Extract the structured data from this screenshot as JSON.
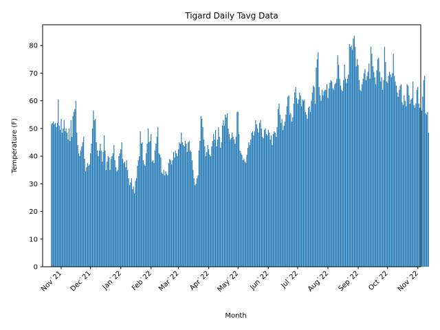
{
  "chart_data": {
    "type": "bar",
    "title": "Tigard Daily Tavg Data",
    "xlabel": "Month",
    "ylabel": "Temperature (F)",
    "ylim": [
      0,
      87.5
    ],
    "xlim": [
      "2021-10-13",
      "2022-11-04"
    ],
    "grid": false,
    "legend": "none",
    "bar_color": "#1f77b4",
    "start_date": "2021-10-22",
    "y_ticks": [
      0,
      10,
      20,
      30,
      40,
      50,
      60,
      70,
      80
    ],
    "x_ticks": [
      {
        "date": "2021-11-01",
        "label": "Nov`21"
      },
      {
        "date": "2021-12-01",
        "label": "Dec`21"
      },
      {
        "date": "2022-01-01",
        "label": "Jan`22"
      },
      {
        "date": "2022-02-01",
        "label": "Feb`22"
      },
      {
        "date": "2022-03-01",
        "label": "Mar`22"
      },
      {
        "date": "2022-04-01",
        "label": "Apr`22"
      },
      {
        "date": "2022-05-01",
        "label": "May`22"
      },
      {
        "date": "2022-06-01",
        "label": "Jun`22"
      },
      {
        "date": "2022-07-01",
        "label": "Jul`22"
      },
      {
        "date": "2022-08-01",
        "label": "Aug`22"
      },
      {
        "date": "2022-09-01",
        "label": "Sep`22"
      },
      {
        "date": "2022-10-01",
        "label": "Oct`22"
      },
      {
        "date": "2022-11-01",
        "label": "Nov`22"
      }
    ],
    "values": [
      51.5,
      52.0,
      52.5,
      51.5,
      52.0,
      50.5,
      52.0,
      60.5,
      51.0,
      49.5,
      53.5,
      48.5,
      50.0,
      53.0,
      49.0,
      50.0,
      48.5,
      46.0,
      50.0,
      45.5,
      53.0,
      47.0,
      54.5,
      56.0,
      57.0,
      60.0,
      48.5,
      44.0,
      41.0,
      40.0,
      42.0,
      43.5,
      45.0,
      47.0,
      39.0,
      34.5,
      36.0,
      37.5,
      36.5,
      37.0,
      41.0,
      44.5,
      50.0,
      56.5,
      53.0,
      53.5,
      45.0,
      42.0,
      40.0,
      42.0,
      44.5,
      42.0,
      38.0,
      41.5,
      47.5,
      42.0,
      35.0,
      38.0,
      40.0,
      39.5,
      35.0,
      39.0,
      40.0,
      41.0,
      44.0,
      38.5,
      36.0,
      34.5,
      35.0,
      40.0,
      41.0,
      42.5,
      45.0,
      39.0,
      37.5,
      38.0,
      36.0,
      38.5,
      35.0,
      32.0,
      29.5,
      30.5,
      32.0,
      28.0,
      29.0,
      26.5,
      31.0,
      32.0,
      36.5,
      38.5,
      40.0,
      49.0,
      44.5,
      45.0,
      38.5,
      37.0,
      36.5,
      41.0,
      44.5,
      50.0,
      45.0,
      45.5,
      48.0,
      38.0,
      38.5,
      37.5,
      42.0,
      44.5,
      47.0,
      50.5,
      41.0,
      40.5,
      39.5,
      34.0,
      33.5,
      35.0,
      33.0,
      34.5,
      33.5,
      33.0,
      37.5,
      39.0,
      38.5,
      37.0,
      38.5,
      41.5,
      39.5,
      42.0,
      41.0,
      40.0,
      42.5,
      45.0,
      44.5,
      48.5,
      45.0,
      44.0,
      43.5,
      45.5,
      44.5,
      41.5,
      45.0,
      45.5,
      42.0,
      41.5,
      38.5,
      35.0,
      32.0,
      29.5,
      30.0,
      32.0,
      33.0,
      42.0,
      45.5,
      54.5,
      53.5,
      50.5,
      46.0,
      43.5,
      40.0,
      41.5,
      44.0,
      42.5,
      40.5,
      40.0,
      43.5,
      45.5,
      48.0,
      46.0,
      49.5,
      43.5,
      46.0,
      50.5,
      47.0,
      43.0,
      45.0,
      51.0,
      53.0,
      51.0,
      55.0,
      54.0,
      55.5,
      50.0,
      48.0,
      46.0,
      46.5,
      48.5,
      47.0,
      46.0,
      44.5,
      47.0,
      56.0,
      56.0,
      48.0,
      42.0,
      41.0,
      40.5,
      38.5,
      39.0,
      38.0,
      37.5,
      40.5,
      43.0,
      45.0,
      44.0,
      46.0,
      48.5,
      49.0,
      47.5,
      49.0,
      53.0,
      51.5,
      50.0,
      48.5,
      52.0,
      53.0,
      50.0,
      47.0,
      46.5,
      49.5,
      50.0,
      48.0,
      47.5,
      49.5,
      48.5,
      46.0,
      47.5,
      44.0,
      48.0,
      49.0,
      48.5,
      47.0,
      50.5,
      57.0,
      59.0,
      55.0,
      52.0,
      53.5,
      49.5,
      51.0,
      52.5,
      55.0,
      58.0,
      61.5,
      62.0,
      55.0,
      55.5,
      52.5,
      54.0,
      59.0,
      63.0,
      65.0,
      61.0,
      59.0,
      60.5,
      63.0,
      62.0,
      58.0,
      60.5,
      60.0,
      60.5,
      56.0,
      55.0,
      53.5,
      57.5,
      58.0,
      56.0,
      60.0,
      63.0,
      65.5,
      65.0,
      59.0,
      72.0,
      75.0,
      77.5,
      65.0,
      62.0,
      60.0,
      64.0,
      62.0,
      63.5,
      64.0,
      64.0,
      66.0,
      61.0,
      64.5,
      66.5,
      67.5,
      67.0,
      64.5,
      64.0,
      66.0,
      66.5,
      68.0,
      76.5,
      73.0,
      68.0,
      65.5,
      64.0,
      63.5,
      67.5,
      73.0,
      68.0,
      66.5,
      68.0,
      69.5,
      80.5,
      79.5,
      80.0,
      78.5,
      82.5,
      83.5,
      79.5,
      72.5,
      75.0,
      73.0,
      67.5,
      64.0,
      63.5,
      66.0,
      68.0,
      70.0,
      71.5,
      67.5,
      69.0,
      70.5,
      73.5,
      68.0,
      79.5,
      77.0,
      72.5,
      70.5,
      68.5,
      66.0,
      71.0,
      75.0,
      75.5,
      70.5,
      67.0,
      68.5,
      64.0,
      67.5,
      79.5,
      74.0,
      67.0,
      66.5,
      69.0,
      70.5,
      69.5,
      68.5,
      70.0,
      77.0,
      69.0,
      67.0,
      65.5,
      63.0,
      61.5,
      64.0,
      65.5,
      66.0,
      59.5,
      58.5,
      62.0,
      60.0,
      58.0,
      66.0,
      65.5,
      62.0,
      59.0,
      60.5,
      61.0,
      67.0,
      58.5,
      57.5,
      59.0,
      64.0,
      65.0,
      59.0,
      57.5,
      58.0,
      56.5,
      61.5,
      67.5,
      69.0,
      55.5,
      55.0,
      56.0,
      48.5
    ]
  }
}
